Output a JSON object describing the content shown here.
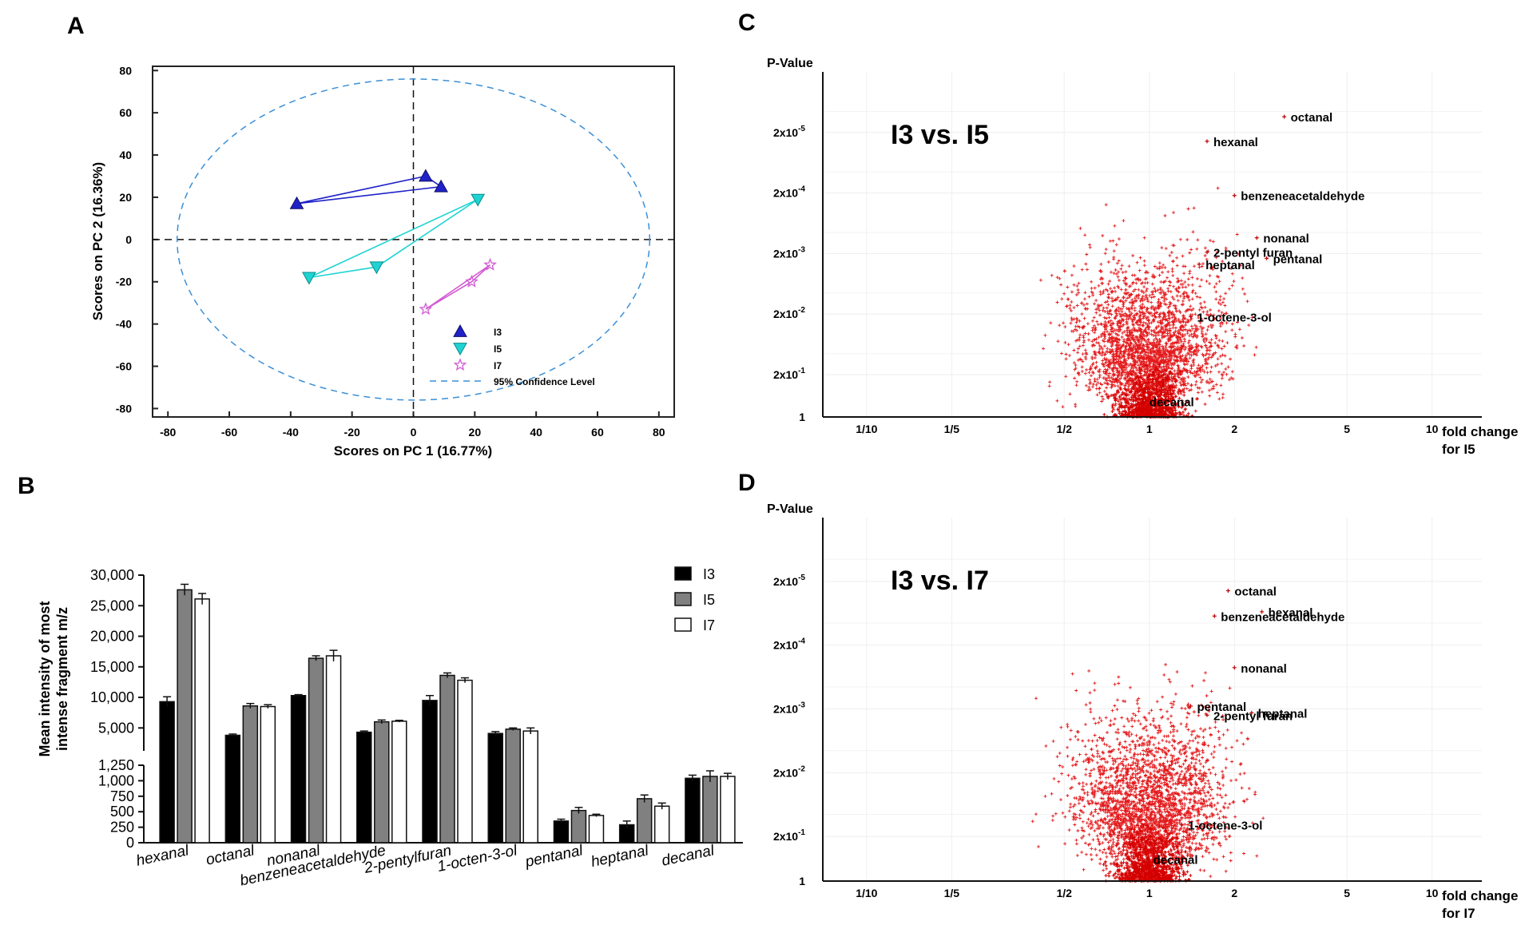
{
  "panels": {
    "a": "A",
    "b": "B",
    "c": "C",
    "d": "D"
  },
  "chart_data": [
    {
      "id": "A",
      "type": "scatter",
      "xlabel": "Scores on PC 1 (16.77%)",
      "ylabel": "Scores on PC 2 (16.36%)",
      "xlim": [
        -85,
        85
      ],
      "ylim": [
        -84,
        82
      ],
      "xticks": [
        -80,
        -60,
        -40,
        -20,
        0,
        20,
        40,
        60,
        80
      ],
      "yticks": [
        80,
        60,
        40,
        20,
        0,
        -20,
        -40,
        -60,
        -80
      ],
      "series": [
        {
          "name": "I3",
          "marker": "triangle-up",
          "color": "#1f22c8",
          "points": [
            [
              -38,
              17
            ],
            [
              4,
              30
            ],
            [
              9,
              25
            ]
          ]
        },
        {
          "name": "I5",
          "marker": "triangle-down",
          "color": "#1fd3d3",
          "points": [
            [
              -34,
              -18
            ],
            [
              -12,
              -13
            ],
            [
              21,
              19
            ]
          ]
        },
        {
          "name": "I7",
          "marker": "star",
          "color": "#d35ad3",
          "points": [
            [
              4,
              -33
            ],
            [
              19,
              -20
            ],
            [
              25,
              -12
            ]
          ]
        }
      ],
      "ellipse": {
        "label": "95% Confidence Level",
        "cx": 0,
        "cy": 0,
        "rx": 77,
        "ry": 76
      }
    },
    {
      "id": "B",
      "type": "bar",
      "ylabel": "Mean intensity of most intense fragment m/z",
      "categories": [
        "hexanal",
        "octanal",
        "nonanal",
        "benzeneacetaldehyde",
        "2-pentylfuran",
        "1-octen-3-ol",
        "pentanal",
        "heptanal",
        "decanal"
      ],
      "series": [
        {
          "name": "I3",
          "color": "#000000",
          "values": [
            9300,
            3800,
            10300,
            4300,
            9500,
            4100,
            350,
            290,
            1040
          ],
          "errors": [
            800,
            200,
            150,
            200,
            800,
            300,
            30,
            60,
            50
          ]
        },
        {
          "name": "I5",
          "color": "#808080",
          "values": [
            27600,
            8600,
            16400,
            6000,
            13600,
            4800,
            520,
            710,
            1070
          ],
          "errors": [
            900,
            400,
            400,
            300,
            400,
            200,
            50,
            60,
            90
          ]
        },
        {
          "name": "I7",
          "color": "#ffffff",
          "values": [
            26100,
            8500,
            16800,
            6100,
            12800,
            4500,
            440,
            590,
            1070
          ],
          "errors": [
            900,
            300,
            900,
            150,
            400,
            500,
            20,
            50,
            50
          ]
        }
      ],
      "ylim_lower": [
        0,
        1250
      ],
      "ylim_upper": [
        1250,
        30000
      ],
      "yticks_lower": [
        "1,250",
        "1,000",
        "750",
        "500",
        "250",
        "0"
      ],
      "yticks_upper": [
        "30,000",
        "25,000",
        "20,000",
        "15,000",
        "10,000",
        "5,000"
      ]
    },
    {
      "id": "C",
      "type": "scatter",
      "title": "I3 vs. I5",
      "ylabel": "P-Value",
      "xlabel_line1": "fold change",
      "xlabel_line2": "for I5",
      "xticks": [
        "1/10",
        "1/5",
        "1/2",
        "1",
        "2",
        "5",
        "10"
      ],
      "yticks": [
        "2x10-5",
        "2x10-4",
        "2x10-3",
        "2x10-2",
        "2x10-1",
        "1"
      ],
      "labeled_points": [
        {
          "name": "octanal",
          "fold": 3.0,
          "p": 1.1e-05
        },
        {
          "name": "hexanal",
          "fold": 1.6,
          "p": 2.8e-05
        },
        {
          "name": "benzeneacetaldehyde",
          "fold": 2.0,
          "p": 0.00022
        },
        {
          "name": "nonanal",
          "fold": 2.4,
          "p": 0.0011
        },
        {
          "name": "2-pentyl furan",
          "fold": 1.6,
          "p": 0.0019
        },
        {
          "name": "pentanal",
          "fold": 2.6,
          "p": 0.0024
        },
        {
          "name": "heptanal",
          "fold": 1.5,
          "p": 0.003
        },
        {
          "name": "1-octene-3-ol",
          "fold": 1.4,
          "p": 0.022
        },
        {
          "name": "decanal",
          "fold": 0.95,
          "p": 0.55
        }
      ]
    },
    {
      "id": "D",
      "type": "scatter",
      "title": "I3 vs. I7",
      "ylabel": "P-Value",
      "xlabel_line1": "fold change",
      "xlabel_line2": "for I7",
      "xticks": [
        "1/10",
        "1/5",
        "1/2",
        "1",
        "2",
        "5",
        "10"
      ],
      "yticks": [
        "2x10-5",
        "2x10-4",
        "2x10-3",
        "2x10-2",
        "2x10-1",
        "1"
      ],
      "labeled_points": [
        {
          "name": "octanal",
          "fold": 1.9,
          "p": 2.8e-05
        },
        {
          "name": "hexanal",
          "fold": 2.5,
          "p": 6e-05
        },
        {
          "name": "benzeneacetaldehyde",
          "fold": 1.7,
          "p": 7e-05
        },
        {
          "name": "nonanal",
          "fold": 2.0,
          "p": 0.00045
        },
        {
          "name": "pentanal",
          "fold": 1.4,
          "p": 0.0018
        },
        {
          "name": "heptanal",
          "fold": 2.3,
          "p": 0.0023
        },
        {
          "name": "2-pentyl furan",
          "fold": 1.6,
          "p": 0.0025
        },
        {
          "name": "1-octene-3-ol",
          "fold": 1.3,
          "p": 0.13
        },
        {
          "name": "decanal",
          "fold": 0.98,
          "p": 0.45
        }
      ]
    }
  ]
}
